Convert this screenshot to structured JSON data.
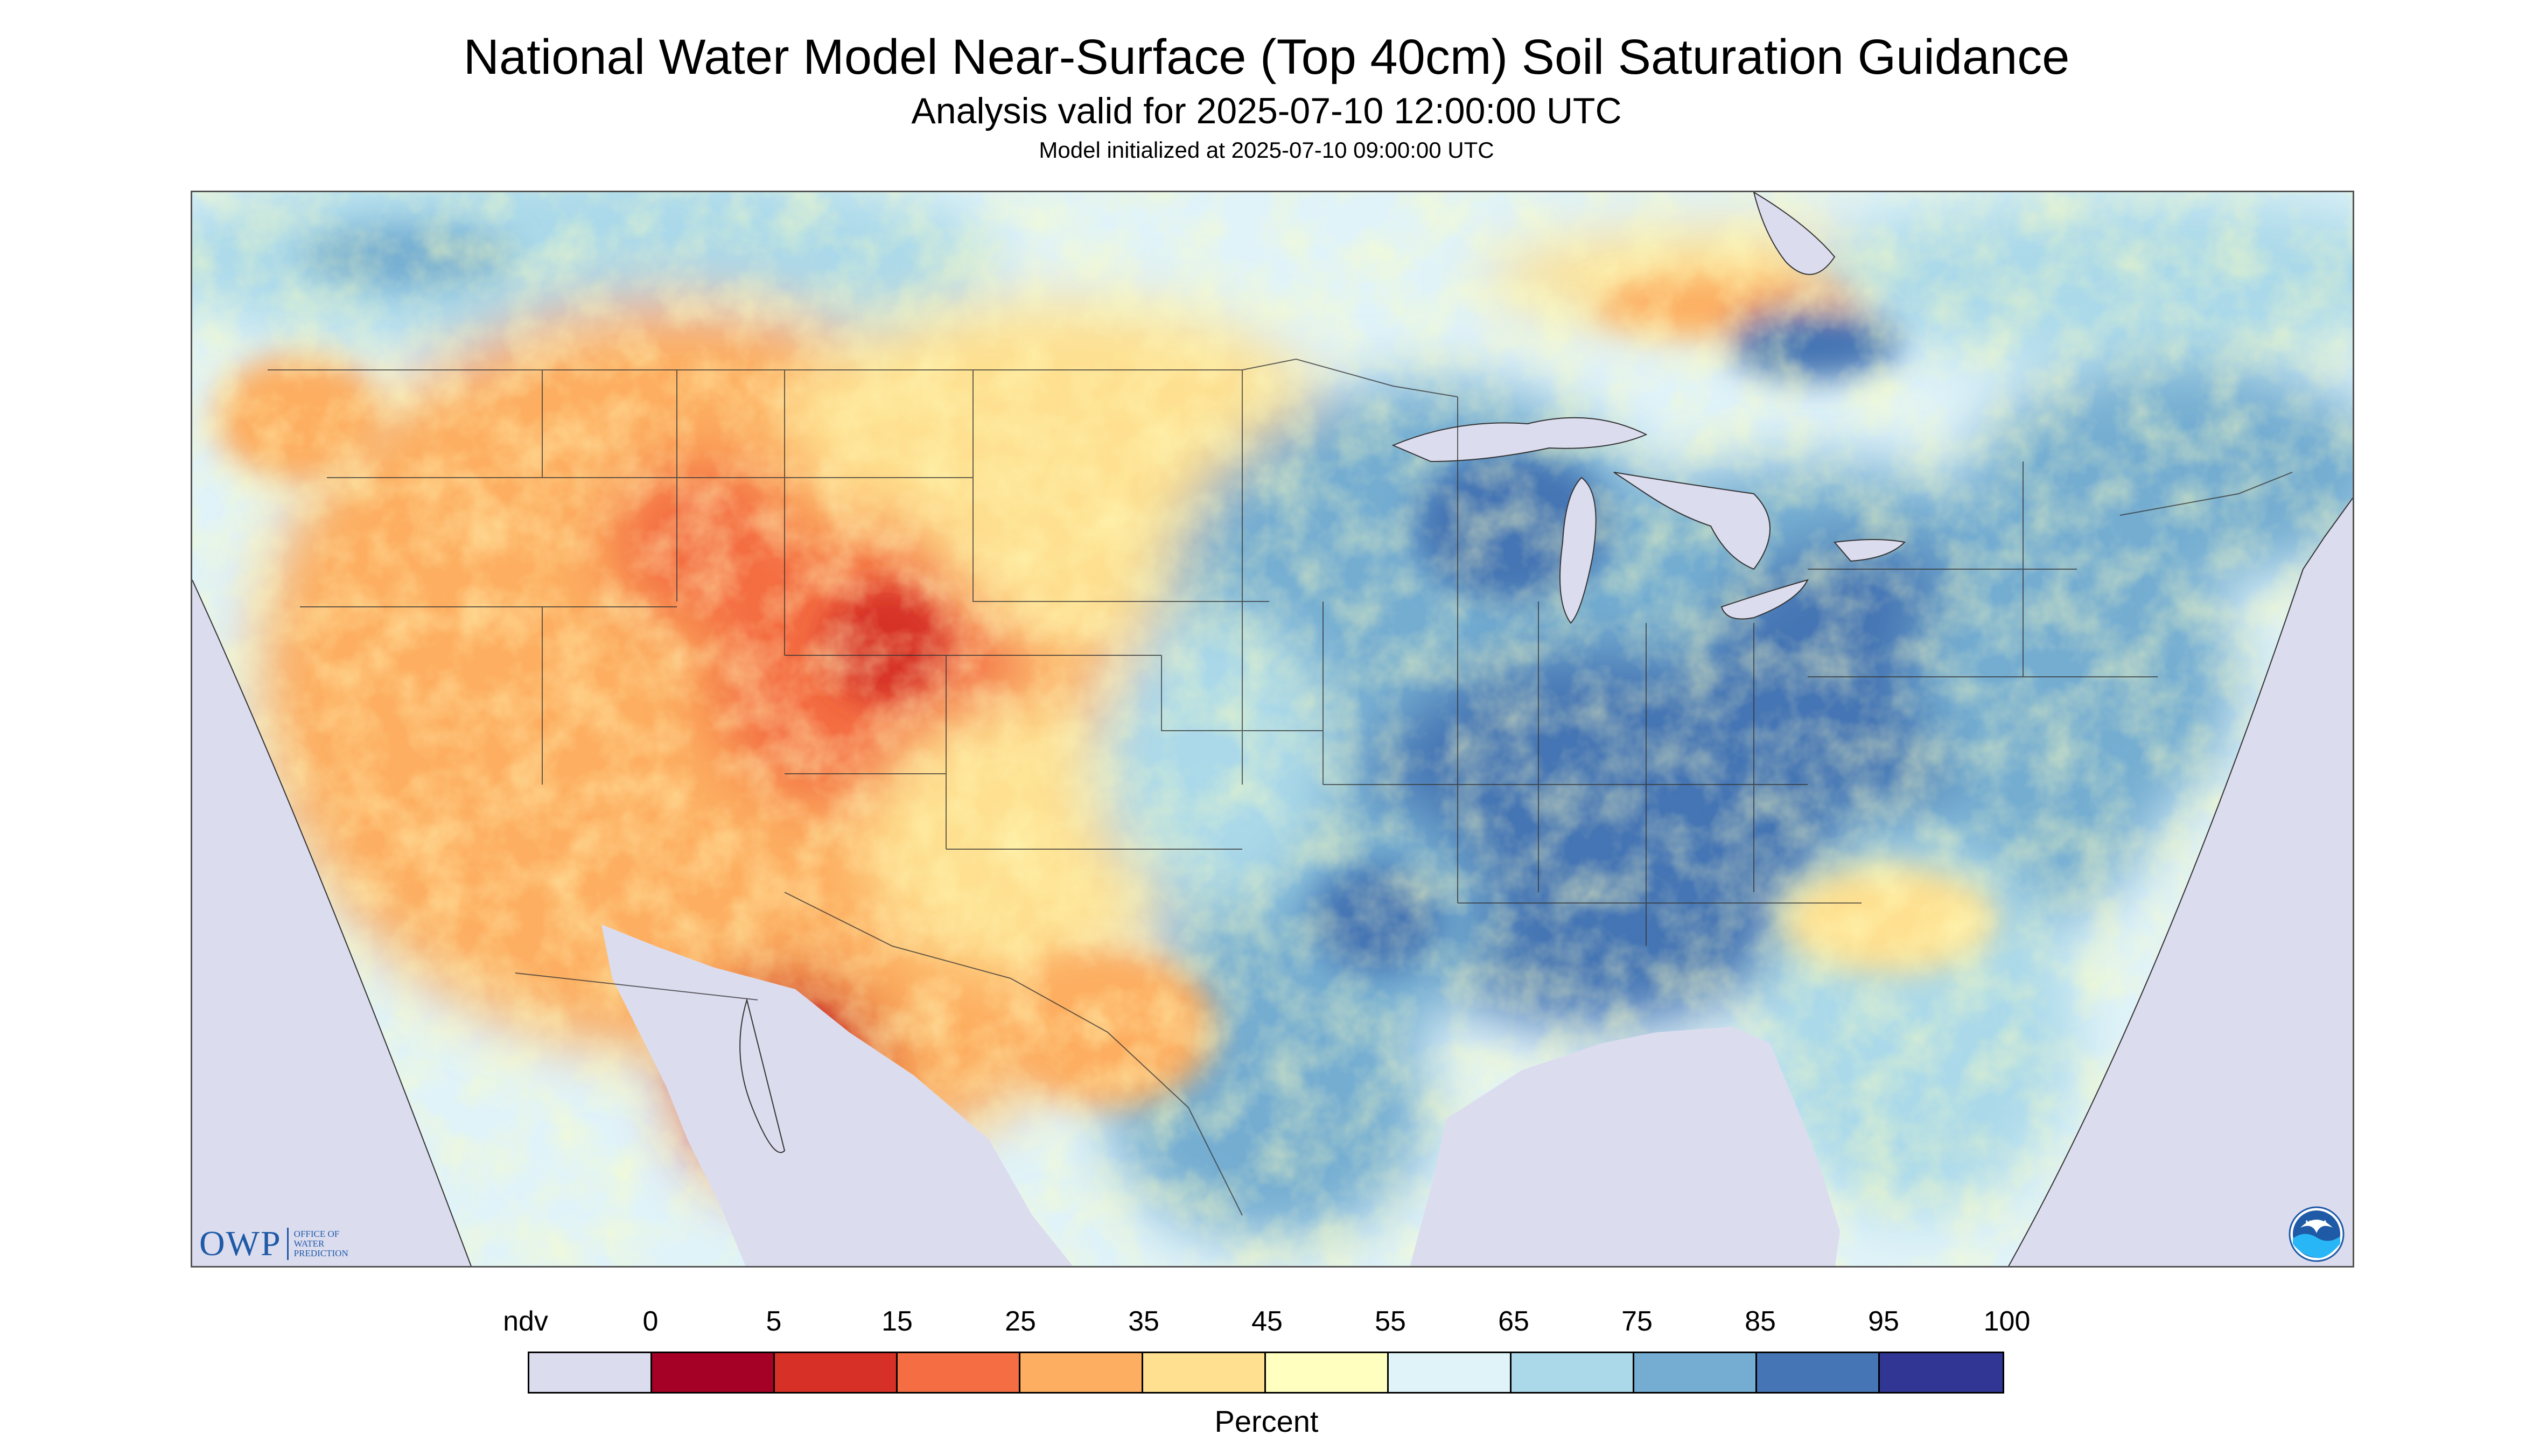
{
  "header": {
    "title": "National Water Model Near-Surface (Top 40cm) Soil Saturation Guidance",
    "subtitle": "Analysis valid for 2025-07-10 12:00:00 UTC",
    "initialized": "Model initialized at 2025-07-10 09:00:00 UTC"
  },
  "logos": {
    "owp_text": "OWP",
    "owp_line1": "Office of",
    "owp_line2": "Water",
    "owp_line3": "Prediction",
    "noaa_text": "NOAA"
  },
  "legend": {
    "units": "Percent",
    "tick_labels": [
      "ndv",
      "0",
      "5",
      "15",
      "25",
      "35",
      "45",
      "55",
      "65",
      "75",
      "85",
      "95",
      "100"
    ],
    "colors": [
      "#dcdcef",
      "#a50026",
      "#d73027",
      "#f46d43",
      "#fdae61",
      "#fee090",
      "#ffffbf",
      "#e0f3f8",
      "#abd9e9",
      "#74add1",
      "#4575b4",
      "#313695"
    ]
  },
  "colors": {
    "no_data": "#dcdcef",
    "water": "#dcdcef",
    "boundary": "#333333"
  }
}
